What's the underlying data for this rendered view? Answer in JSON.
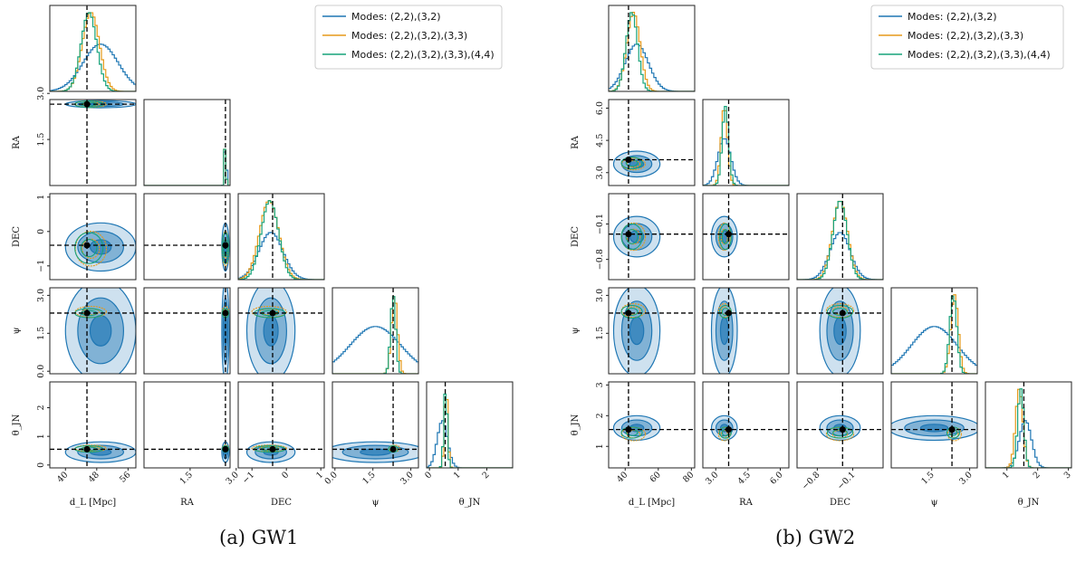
{
  "colors": {
    "blue": "#1f77b4",
    "orange": "#e69a1a",
    "green": "#17a37a",
    "truth": "#000000",
    "blueFill": "#1f77b4"
  },
  "legend_labels": [
    "Modes: (2,2),(3,2)",
    "Modes: (2,2),(3,2),(3,3)",
    "Modes: (2,2),(3,2),(3,3),(4,4)"
  ],
  "captions": {
    "a": "(a) GW1",
    "b": "(b) GW2"
  },
  "chart_data": [
    {
      "type": "corner",
      "panel": "GW1",
      "parameters": [
        "d_L",
        "RA",
        "DEC",
        "psi",
        "theta_JN"
      ],
      "axis_labels": [
        "d_L [Mpc]",
        "RA",
        "DEC",
        "ψ",
        "θ_JN"
      ],
      "ranges": [
        [
          36,
          58
        ],
        [
          0.0,
          2.8
        ],
        [
          -1.4,
          1.1
        ],
        [
          -0.1,
          3.3
        ],
        [
          -0.1,
          2.9
        ]
      ],
      "ticks": [
        [
          40,
          48,
          56
        ],
        [
          1.5,
          3.0
        ],
        [
          -1,
          0,
          1
        ],
        [
          0.0,
          1.5,
          3.0
        ],
        [
          0,
          1,
          2
        ]
      ],
      "tick_labels": [
        [
          "40",
          "48",
          "56"
        ],
        [
          "1.5",
          "3.0"
        ],
        [
          "−1",
          "0",
          "1"
        ],
        [
          "0.0",
          "1.5",
          "3.0"
        ],
        [
          "0",
          "1",
          "2"
        ]
      ],
      "truths": [
        45.5,
        2.65,
        -0.4,
        2.3,
        0.55
      ],
      "series": [
        {
          "name": "Modes: (2,2),(3,2)",
          "means": [
            49,
            2.65,
            -0.45,
            1.6,
            0.45
          ],
          "sds": [
            4.5,
            0.03,
            0.35,
            1.0,
            0.18
          ]
        },
        {
          "name": "Modes: (2,2),(3,2),(3,3)",
          "means": [
            46.5,
            2.65,
            -0.5,
            2.35,
            0.58
          ],
          "sds": [
            2.2,
            0.02,
            0.28,
            0.12,
            0.06
          ]
        },
        {
          "name": "Modes: (2,2),(3,2),(3,3),(4,4)",
          "means": [
            46,
            2.65,
            -0.48,
            2.3,
            0.56
          ],
          "sds": [
            2.0,
            0.02,
            0.25,
            0.1,
            0.06
          ]
        }
      ]
    },
    {
      "type": "corner",
      "panel": "GW2",
      "parameters": [
        "d_L",
        "RA",
        "DEC",
        "psi",
        "theta_JN"
      ],
      "axis_labels": [
        "d_L [Mpc]",
        "RA",
        "DEC",
        "ψ",
        "θ_JN"
      ],
      "ranges": [
        [
          30,
          82
        ],
        [
          2.4,
          6.4
        ],
        [
          -1.2,
          0.5
        ],
        [
          -0.1,
          3.3
        ],
        [
          0.3,
          3.1
        ]
      ],
      "ticks": [
        [
          40,
          60,
          80
        ],
        [
          3.0,
          4.5,
          6.0
        ],
        [
          -0.8,
          -0.1
        ],
        [
          1.5,
          3.0
        ],
        [
          1,
          2,
          3
        ]
      ],
      "tick_labels": [
        [
          "40",
          "60",
          "80"
        ],
        [
          "3.0",
          "4.5",
          "6.0"
        ],
        [
          "−0.8",
          "−0.1"
        ],
        [
          "1.5",
          "3.0"
        ],
        [
          "1",
          "2",
          "3"
        ]
      ],
      "truths": [
        42,
        3.6,
        -0.3,
        2.3,
        1.55
      ],
      "series": [
        {
          "name": "Modes: (2,2),(3,2)",
          "means": [
            47,
            3.4,
            -0.35,
            1.6,
            1.6
          ],
          "sds": [
            7,
            0.3,
            0.2,
            0.9,
            0.2
          ]
        },
        {
          "name": "Modes: (2,2),(3,2),(3,3)",
          "means": [
            45,
            3.4,
            -0.35,
            2.4,
            1.4
          ],
          "sds": [
            4,
            0.15,
            0.15,
            0.15,
            0.12
          ]
        },
        {
          "name": "Modes: (2,2),(3,2),(3,3),(4,4)",
          "means": [
            44,
            3.45,
            -0.35,
            2.35,
            1.45
          ],
          "sds": [
            3.5,
            0.15,
            0.14,
            0.14,
            0.1
          ]
        }
      ]
    }
  ]
}
